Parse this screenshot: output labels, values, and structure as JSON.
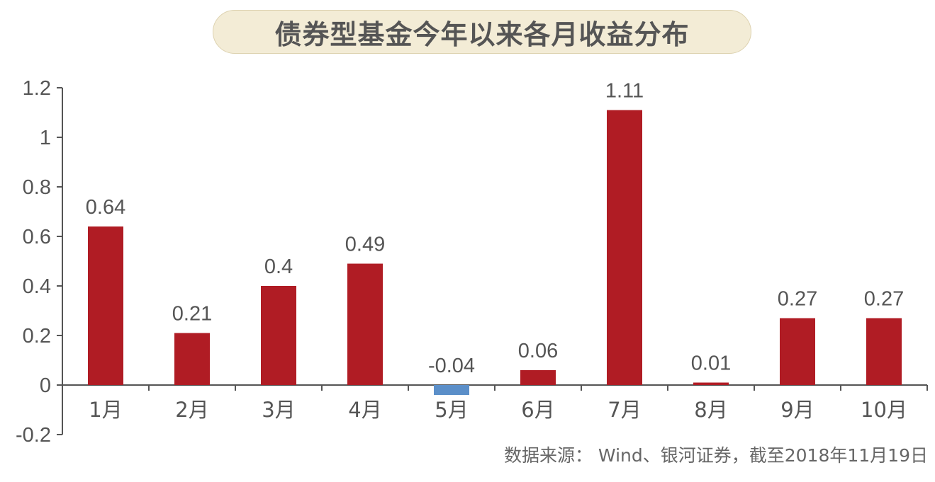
{
  "title": "债券型基金今年以来各月收益分布",
  "source": "数据来源： Wind、银河证券，截至2018年11月19日",
  "colors": {
    "positive": "#b01c24",
    "negative": "#5b8fc9",
    "axis": "#555555",
    "text": "#555555",
    "title_bg": "#f3ecd6"
  },
  "chart_data": {
    "type": "bar",
    "categories": [
      "1月",
      "2月",
      "3月",
      "4月",
      "5月",
      "6月",
      "7月",
      "8月",
      "9月",
      "10月"
    ],
    "values": [
      0.64,
      0.21,
      0.4,
      0.49,
      -0.04,
      0.06,
      1.11,
      0.01,
      0.27,
      0.27
    ],
    "data_labels": [
      "0.64",
      "0.21",
      "0.4",
      "0.49",
      "-0.04",
      "0.06",
      "1.11",
      "0.01",
      "0.27",
      "0.27"
    ],
    "y_ticks": [
      1.2,
      1,
      0.8,
      0.6,
      0.4,
      0.2,
      0,
      -0.2
    ],
    "y_tick_labels": [
      "1.2",
      "1",
      "0.8",
      "0.6",
      "0.4",
      "0.2",
      "0",
      "-0.2"
    ],
    "ylim": [
      -0.2,
      1.2
    ],
    "title": "债券型基金今年以来各月收益分布",
    "xlabel": "",
    "ylabel": "",
    "grid": false,
    "legend": "none"
  }
}
